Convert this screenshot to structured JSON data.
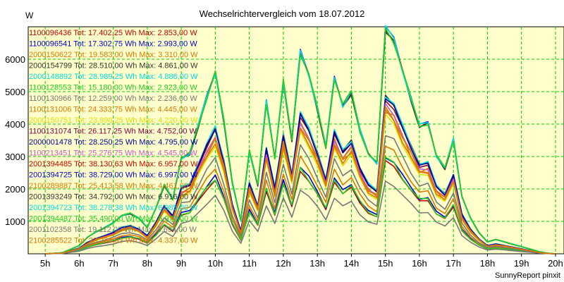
{
  "chart_data": {
    "type": "line",
    "title": "Wechselrichtervergleich vom 18.07.2012",
    "ylabel": "W",
    "xlabel": "",
    "footer": "SunnyReport pinxit",
    "x_ticks": [
      "5h",
      "6h",
      "7h",
      "8h",
      "9h",
      "10h",
      "11h",
      "12h",
      "13h",
      "14h",
      "15h",
      "16h",
      "17h",
      "18h",
      "19h",
      "20h"
    ],
    "y_ticks": [
      1000,
      2000,
      3000,
      4000,
      5000,
      6000
    ],
    "xlim": [
      4.5,
      20.25
    ],
    "ylim": [
      0,
      7000
    ],
    "grid": true,
    "legend_position": "top-left",
    "x_hours": [
      5,
      5.5,
      6,
      6.25,
      6.5,
      6.75,
      7,
      7.25,
      7.5,
      7.75,
      8,
      8.25,
      8.5,
      8.75,
      9,
      9.25,
      9.5,
      9.75,
      10,
      10.25,
      10.5,
      10.75,
      11,
      11.25,
      11.5,
      11.75,
      12,
      12.25,
      12.5,
      12.75,
      13,
      13.25,
      13.5,
      13.75,
      14,
      14.25,
      14.5,
      14.75,
      15,
      15.25,
      15.5,
      15.75,
      16,
      16.25,
      16.5,
      16.75,
      17,
      17.25,
      17.5,
      17.75,
      18,
      18.25,
      18.5,
      18.75,
      19,
      19.25,
      19.5,
      19.75,
      20
    ],
    "base_profile": [
      0,
      25,
      190,
      385,
      510,
      605,
      715,
      880,
      935,
      825,
      605,
      1045,
      1595,
      1265,
      2200,
      2310,
      2970,
      3630,
      4180,
      3080,
      1650,
      770,
      2365,
      1595,
      3520,
      2200,
      3960,
      2640,
      4675,
      4125,
      3355,
      2475,
      4070,
      3410,
      3740,
      2860,
      2310,
      2090,
      5225,
      4950,
      4235,
      3575,
      2970,
      3025,
      2255,
      1980,
      2640,
      1320,
      825,
      495,
      275,
      330,
      275,
      220,
      165,
      110,
      55,
      15,
      0
    ],
    "series": [
      {
        "name": "1100096436",
        "color": "#cc0000",
        "label": "1100096436 Tot: 17.402,25 Wh Max: 2.853,00 W",
        "peak": 2853,
        "tot": 17402.25,
        "jitter": 0.01
      },
      {
        "name": "1100096541",
        "color": "#0000cc",
        "label": "1100096541 Tot: 17.302,75 Wh Max: 2.993,00 W",
        "peak": 2993,
        "tot": 17302.75,
        "jitter": 0.015
      },
      {
        "name": "2000150622",
        "color": "#dd7700",
        "label": "2000150622 Tot: 19.583,00 Wh Max: 3.310,00 W",
        "peak": 3310,
        "tot": 19583,
        "jitter": 0.02
      },
      {
        "name": "2000154799",
        "color": "#333333",
        "label": "2000154799 Tot: 28.510,00 Wh Max: 4.861,00 W",
        "peak": 4861,
        "tot": 28510,
        "jitter": 0.01
      },
      {
        "name": "2000148892",
        "color": "#00dddd",
        "label": "2000148892 Tot: 28.989,25 Wh Max: 4.886,00 W",
        "peak": 4886,
        "tot": 28989.25,
        "jitter": 0.012
      },
      {
        "name": "1100128553",
        "color": "#22cc22",
        "label": "1100128553 Tot: 15.180,00 Wh Max: 2.923,00 W",
        "peak": 2923,
        "tot": 15180,
        "jitter": 0.03
      },
      {
        "name": "1100130966",
        "color": "#777777",
        "label": "1100130966 Tot: 12.259,00 Wh Max: 2.236,00 W",
        "peak": 2236,
        "tot": 12259,
        "jitter": 0.02
      },
      {
        "name": "1100131006",
        "color": "#dd7700",
        "label": "1100131006 Tot: 24.333,75 Wh Max: 4.445,00 W",
        "peak": 4445,
        "tot": 24333.75,
        "jitter": 0.025
      },
      {
        "name": "2000150751",
        "color": "#dddd00",
        "label": "2000150751 Tot: 23.998,25 Wh Max: 4.220,00 W",
        "peak": 4220,
        "tot": 23998.25,
        "jitter": 0.02
      },
      {
        "name": "1100131074",
        "color": "#880044",
        "label": "1100131074 Tot: 26.117,25 Wh Max: 4.752,00 W",
        "peak": 4752,
        "tot": 26117.25,
        "jitter": 0.015
      },
      {
        "name": "2000001478",
        "color": "#000099",
        "label": "2000001478 Tot: 28.250,25 Wh Max: 4.795,00 W",
        "peak": 4795,
        "tot": 28250.25,
        "jitter": 0.01
      },
      {
        "name": "1100213451",
        "color": "#cc55cc",
        "label": "1100213451 Tot: 25.276,75 Wh Max: 4.545,00 W",
        "peak": 4545,
        "tot": 25276.75,
        "jitter": 0.02
      },
      {
        "name": "2001394485",
        "color": "#cc0000",
        "label": "2001394485 Tot: 38.130,63 Wh Max: 6.957,00 W",
        "peak": 6957,
        "tot": 38130.63,
        "jitter": 0.01
      },
      {
        "name": "2001394725",
        "color": "#0000cc",
        "label": "2001394725 Tot: 38.729,00 Wh Max: 6.997,00 W",
        "peak": 6997,
        "tot": 38729,
        "jitter": 0.008
      },
      {
        "name": "2100289887",
        "color": "#dd7700",
        "label": "2100289887 Tot: 25.413,58 Wh Max: 4.461,00 W",
        "peak": 4461,
        "tot": 25413.58,
        "jitter": 0.03
      },
      {
        "name": "2001393249",
        "color": "#333333",
        "label": "2001393249 Tot: 34.792,00 Wh Max: 6.916,00 W",
        "peak": 6916,
        "tot": 34792,
        "jitter": 0.012
      },
      {
        "name": "2001394723",
        "color": "#00dddd",
        "label": "2001394723 Tot: 38.278,38 Wh Max: 6.985,00 W",
        "peak": 6985,
        "tot": 38278.38,
        "jitter": 0.01
      },
      {
        "name": "2001394487",
        "color": "#22cc22",
        "label": "2001394487 Tot: 35.490,00 Wh Max: 6.970,00 W",
        "peak": 6970,
        "tot": 35490,
        "jitter": 0.02
      },
      {
        "name": "2001102358",
        "color": "#777777",
        "label": "2001102358 Tot: 19.112,00 Wh Max: 3.694,00 W",
        "peak": 3694,
        "tot": 19112,
        "jitter": 0.02
      },
      {
        "name": "2100285522",
        "color": "#dd7700",
        "label": "2100285522 Tot: 23.234,03 Wh Max: 4.337,00 W",
        "peak": 4337,
        "tot": 23234.03,
        "jitter": 0.025
      }
    ]
  },
  "colors": {
    "plot_background": "#ffffcc",
    "grid": "#00cc00",
    "axis": "#000000",
    "page_background": "#ffffff"
  }
}
